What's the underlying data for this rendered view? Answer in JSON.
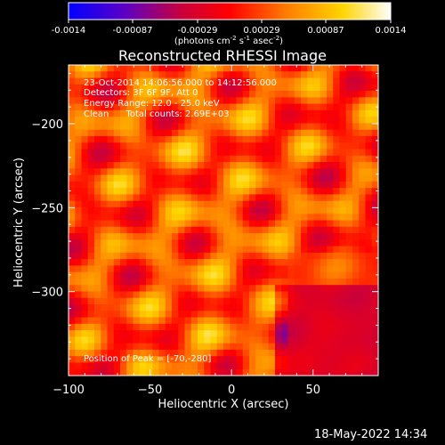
{
  "colorbar": {
    "tick_labels": [
      "-0.0014",
      "-0.00087",
      "-0.00029",
      "0.00029",
      "0.00087",
      "0.0014"
    ],
    "unit_text": "(photons cm",
    "unit_sup1": "-2",
    "unit_mid": " s",
    "unit_sup2": "-1",
    "unit_mid2": " asec",
    "unit_sup3": "-2",
    "unit_end": ")",
    "colors": [
      "#0000ff",
      "#5a00c8",
      "#c8003c",
      "#ff0000",
      "#ff7f00",
      "#ffd400",
      "#ffffff"
    ]
  },
  "chart_data": {
    "type": "heatmap",
    "title": "Reconstructed RHESSI Image",
    "xlabel": "Heliocentric X (arcsec)",
    "ylabel": "Heliocentric Y (arcsec)",
    "xlim": [
      -100,
      90
    ],
    "ylim": [
      -350,
      -165
    ],
    "x_ticks": [
      -100,
      -50,
      0,
      50
    ],
    "x_tick_labels": [
      "−100",
      "−50",
      "0",
      "50"
    ],
    "y_ticks": [
      -200,
      -250,
      -300
    ],
    "y_tick_labels": [
      "−200",
      "−250",
      "−300"
    ],
    "value_range": [
      -0.0014,
      0.0014
    ],
    "annotations": [
      "23-Oct-2014 14:06:56.000 to 14:12:56.000",
      "Detectors: 3F 6F 9F, Att 0",
      "Energy Range: 12.0 - 25.0 keV",
      "Clean      Total counts: 2.69E+03"
    ],
    "peak_text": "Position of Peak = [-70,-280]",
    "peak": [
      -70,
      -280
    ]
  },
  "footer": {
    "timestamp": "18-May-2022 14:34"
  }
}
